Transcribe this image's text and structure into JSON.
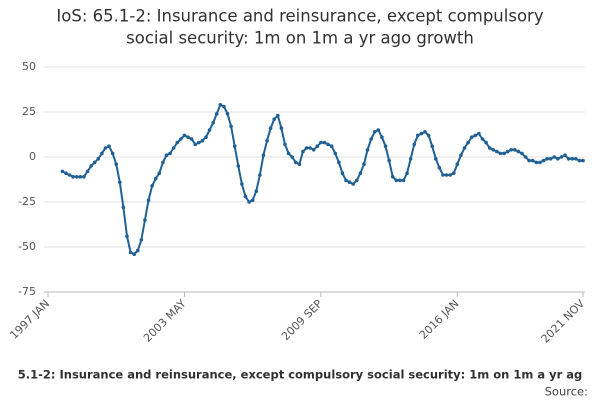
{
  "chart_data": {
    "type": "line",
    "title": [
      "IoS: 65.1-2: Insurance and reinsurance, except compulsory",
      "social security: 1m on 1m a yr ago growth"
    ],
    "footer_title": "5.1-2: Insurance and reinsurance, except compulsory social security: 1m on 1m a yr ag",
    "source": "Source:",
    "categories": [
      "1997 JAN",
      null,
      null,
      null,
      null,
      null,
      null,
      null,
      null,
      null,
      null,
      null,
      null,
      null,
      null,
      null,
      null,
      null,
      null,
      null,
      null,
      null,
      null,
      null,
      null,
      null,
      null,
      null,
      null,
      null,
      null,
      null,
      null,
      null,
      null,
      null,
      null,
      null,
      "2003 MAY",
      null,
      null,
      null,
      null,
      null,
      null,
      null,
      null,
      null,
      null,
      null,
      null,
      null,
      null,
      null,
      null,
      null,
      null,
      null,
      null,
      null,
      null,
      null,
      null,
      null,
      null,
      null,
      null,
      null,
      null,
      null,
      null,
      null,
      null,
      null,
      null,
      null,
      "2009 SEP",
      null,
      null,
      null,
      null,
      null,
      null,
      null,
      null,
      null,
      null,
      null,
      null,
      null,
      null,
      null,
      null,
      null,
      null,
      null,
      null,
      null,
      null,
      null,
      null,
      null,
      null,
      null,
      null,
      null,
      null,
      null,
      null,
      null,
      null,
      null,
      null,
      null,
      "2016 JAN",
      null,
      null,
      null,
      null,
      null,
      null,
      null,
      null,
      null,
      null,
      null,
      null,
      null,
      null,
      null,
      null,
      null,
      null,
      null,
      null,
      null,
      null,
      null,
      null,
      null,
      null,
      null,
      null,
      null,
      null,
      null,
      null,
      null,
      null,
      "2021 NOV"
    ],
    "series": [
      {
        "color": "#206095",
        "values": [
          null,
          null,
          null,
          null,
          -8,
          -9,
          -10,
          -11,
          -11,
          -11,
          -11,
          -8,
          -5,
          -3,
          -1,
          2,
          5,
          6,
          2,
          -4,
          -14,
          -28,
          -44,
          -53,
          -54,
          -52,
          -46,
          -35,
          -24,
          -16,
          -12,
          -9,
          -3,
          1,
          2,
          5,
          8,
          10,
          12,
          11,
          10,
          7,
          8,
          9,
          11,
          15,
          19,
          24,
          29,
          28,
          24,
          17,
          6,
          -5,
          -15,
          -22,
          -25,
          -24,
          -19,
          -10,
          1,
          9,
          16,
          21,
          23,
          16,
          7,
          2,
          0,
          -3,
          -4,
          3,
          5,
          5,
          4,
          6,
          8,
          8,
          7,
          6,
          2,
          -3,
          -9,
          -13,
          -14,
          -15,
          -13,
          -9,
          -4,
          4,
          10,
          14,
          15,
          11,
          6,
          -2,
          -11,
          -13,
          -13,
          -13,
          -9,
          -1,
          7,
          12,
          13,
          14,
          12,
          6,
          -1,
          -6,
          -10,
          -10,
          -10,
          -9,
          -4,
          1,
          5,
          8,
          11,
          12,
          13,
          10,
          8,
          5,
          4,
          3,
          2,
          2,
          3,
          4,
          4,
          3,
          2,
          0,
          -2,
          -2,
          -3,
          -3,
          -2,
          -1,
          -1,
          0,
          -1,
          0,
          1,
          -1,
          -1,
          -1,
          -2,
          -2
        ]
      }
    ],
    "ylim": [
      -75,
      50
    ],
    "yticks": [
      50,
      25,
      0,
      -25,
      -50,
      -75
    ],
    "grid": true
  }
}
